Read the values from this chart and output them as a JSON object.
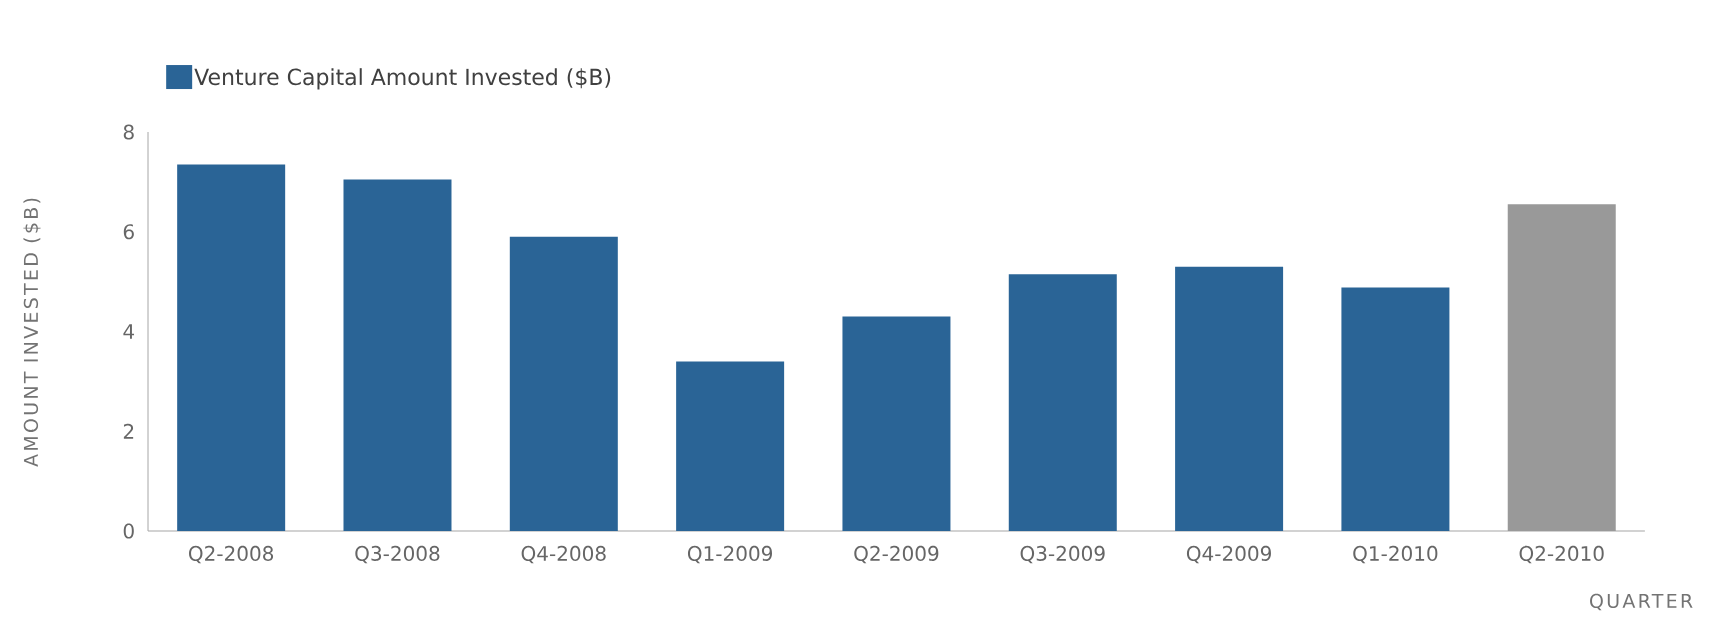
{
  "chart_data": {
    "type": "bar",
    "categories": [
      "Q2-2008",
      "Q3-2008",
      "Q4-2008",
      "Q1-2009",
      "Q2-2009",
      "Q3-2009",
      "Q4-2009",
      "Q1-2010",
      "Q2-2010"
    ],
    "series": [
      {
        "name": "Venture Capital Amount Invested ($B)",
        "color": "#2a6496",
        "colors": [
          "#2a6496",
          "#2a6496",
          "#2a6496",
          "#2a6496",
          "#2a6496",
          "#2a6496",
          "#2a6496",
          "#2a6496",
          "#999999"
        ],
        "values": [
          7.35,
          7.05,
          5.9,
          3.4,
          4.3,
          5.15,
          5.3,
          4.88,
          6.55
        ]
      }
    ],
    "xlabel": "QUARTER",
    "ylabel": "AMOUNT INVESTED ($B)",
    "ylim": [
      0,
      8
    ],
    "yticks": [
      0,
      2,
      4,
      6,
      8
    ],
    "grid": false,
    "legend": "top left"
  }
}
